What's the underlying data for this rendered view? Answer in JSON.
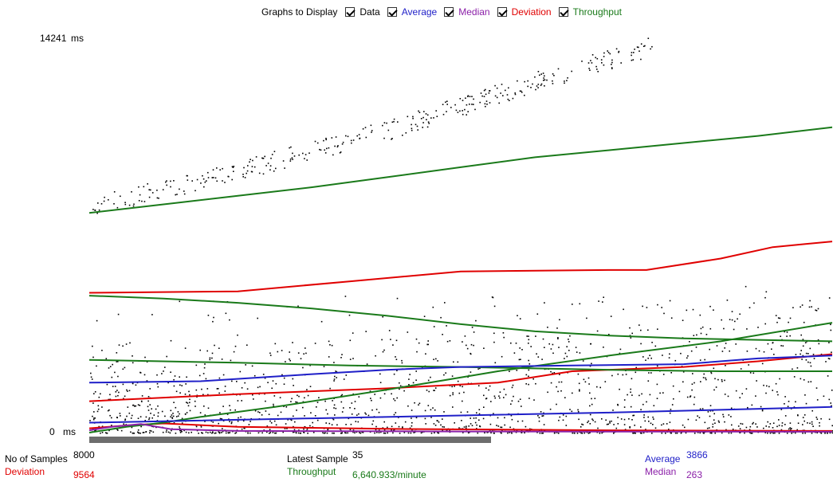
{
  "legend": {
    "title": "Graphs to Display",
    "items": [
      {
        "label": "Data",
        "checked": true,
        "color": "#000000"
      },
      {
        "label": "Average",
        "checked": true,
        "color": "#1f1fc8"
      },
      {
        "label": "Median",
        "checked": true,
        "color": "#8b1fa8"
      },
      {
        "label": "Deviation",
        "checked": true,
        "color": "#e00000"
      },
      {
        "label": "Throughput",
        "checked": true,
        "color": "#1a7a1a"
      }
    ]
  },
  "axis": {
    "y_max_value": "14241",
    "y_max_unit": "ms",
    "y_min_value": "0",
    "y_min_unit": "ms"
  },
  "stats": {
    "samples_label": "No of Samples",
    "samples_value": "8000",
    "deviation_label": "Deviation",
    "deviation_value": "9564",
    "latest_label": "Latest Sample",
    "latest_value": "35",
    "throughput_label": "Throughput",
    "throughput_value": "6,640.933/minute",
    "average_label": "Average",
    "average_value": "3866",
    "median_label": "Median",
    "median_value": "263"
  },
  "colors": {
    "data": "#000000",
    "average": "#1f1fc8",
    "median": "#8b1fa8",
    "deviation": "#e00000",
    "throughput": "#1a7a1a",
    "scrollbar": "#6d6d6d"
  },
  "chart_data": {
    "type": "line",
    "y_unit": "ms",
    "ylim": [
      0,
      14241
    ],
    "grid": false,
    "legend_placement": "top",
    "series": [
      {
        "name": "Deviation",
        "color": "#e00000",
        "points": [
          [
            0,
            4900
          ],
          [
            0.2,
            4950
          ],
          [
            0.35,
            5300
          ],
          [
            0.5,
            5650
          ],
          [
            0.7,
            5700
          ],
          [
            0.75,
            5700
          ],
          [
            0.85,
            6100
          ],
          [
            0.92,
            6500
          ],
          [
            1,
            6700
          ]
        ]
      },
      {
        "name": "Deviation",
        "color": "#e00000",
        "points": [
          [
            0,
            1100
          ],
          [
            0.2,
            1350
          ],
          [
            0.4,
            1550
          ],
          [
            0.55,
            1750
          ],
          [
            0.65,
            2150
          ],
          [
            0.8,
            2300
          ],
          [
            0.9,
            2500
          ],
          [
            1,
            2750
          ]
        ]
      },
      {
        "name": "Deviation",
        "color": "#e00000",
        "points": [
          [
            0,
            150
          ],
          [
            0.05,
            250
          ],
          [
            0.1,
            320
          ],
          [
            0.2,
            200
          ],
          [
            0.4,
            130
          ],
          [
            0.7,
            80
          ],
          [
            1,
            60
          ]
        ]
      },
      {
        "name": "Throughput",
        "color": "#1a7a1a",
        "points": [
          [
            0,
            7700
          ],
          [
            0.1,
            8000
          ],
          [
            0.2,
            8300
          ],
          [
            0.3,
            8600
          ],
          [
            0.4,
            8950
          ],
          [
            0.5,
            9300
          ],
          [
            0.6,
            9650
          ],
          [
            0.7,
            9900
          ],
          [
            0.8,
            10150
          ],
          [
            0.9,
            10400
          ],
          [
            1,
            10700
          ]
        ]
      },
      {
        "name": "Throughput",
        "color": "#1a7a1a",
        "points": [
          [
            0,
            4800
          ],
          [
            0.1,
            4700
          ],
          [
            0.2,
            4550
          ],
          [
            0.3,
            4350
          ],
          [
            0.4,
            4100
          ],
          [
            0.5,
            3800
          ],
          [
            0.6,
            3550
          ],
          [
            0.7,
            3400
          ],
          [
            0.8,
            3300
          ],
          [
            0.9,
            3250
          ],
          [
            1,
            3200
          ]
        ]
      },
      {
        "name": "Throughput",
        "color": "#1a7a1a",
        "points": [
          [
            0,
            2550
          ],
          [
            0.2,
            2450
          ],
          [
            0.35,
            2350
          ],
          [
            0.5,
            2300
          ],
          [
            0.7,
            2200
          ],
          [
            0.85,
            2150
          ],
          [
            1,
            2150
          ]
        ]
      },
      {
        "name": "Throughput",
        "color": "#1a7a1a",
        "points": [
          [
            0,
            0
          ],
          [
            0.05,
            200
          ],
          [
            0.1,
            350
          ],
          [
            0.15,
            550
          ],
          [
            0.25,
            900
          ],
          [
            0.4,
            1500
          ],
          [
            0.55,
            2150
          ],
          [
            0.7,
            2700
          ],
          [
            0.85,
            3200
          ],
          [
            1,
            3850
          ]
        ]
      },
      {
        "name": "Average",
        "color": "#1f1fc8",
        "points": [
          [
            0,
            1750
          ],
          [
            0.15,
            1800
          ],
          [
            0.3,
            2050
          ],
          [
            0.4,
            2200
          ],
          [
            0.5,
            2300
          ],
          [
            0.65,
            2350
          ],
          [
            0.8,
            2400
          ],
          [
            0.9,
            2600
          ],
          [
            1,
            2700
          ]
        ]
      },
      {
        "name": "Average",
        "color": "#1f1fc8",
        "points": [
          [
            0,
            350
          ],
          [
            0.1,
            400
          ],
          [
            0.3,
            500
          ],
          [
            0.5,
            600
          ],
          [
            0.7,
            700
          ],
          [
            0.85,
            800
          ],
          [
            1,
            900
          ]
        ]
      },
      {
        "name": "Median",
        "color": "#8b1fa8",
        "points": [
          [
            0,
            80
          ],
          [
            0.03,
            200
          ],
          [
            0.07,
            300
          ],
          [
            0.11,
            120
          ],
          [
            0.2,
            60
          ],
          [
            0.5,
            40
          ],
          [
            1,
            30
          ]
        ]
      }
    ],
    "data_points_trend": [
      [
        0,
        7900
      ],
      [
        0.2,
        9200
      ],
      [
        0.4,
        10600
      ],
      [
        0.6,
        12300
      ],
      [
        0.8,
        13900
      ],
      [
        1,
        14241
      ]
    ]
  }
}
